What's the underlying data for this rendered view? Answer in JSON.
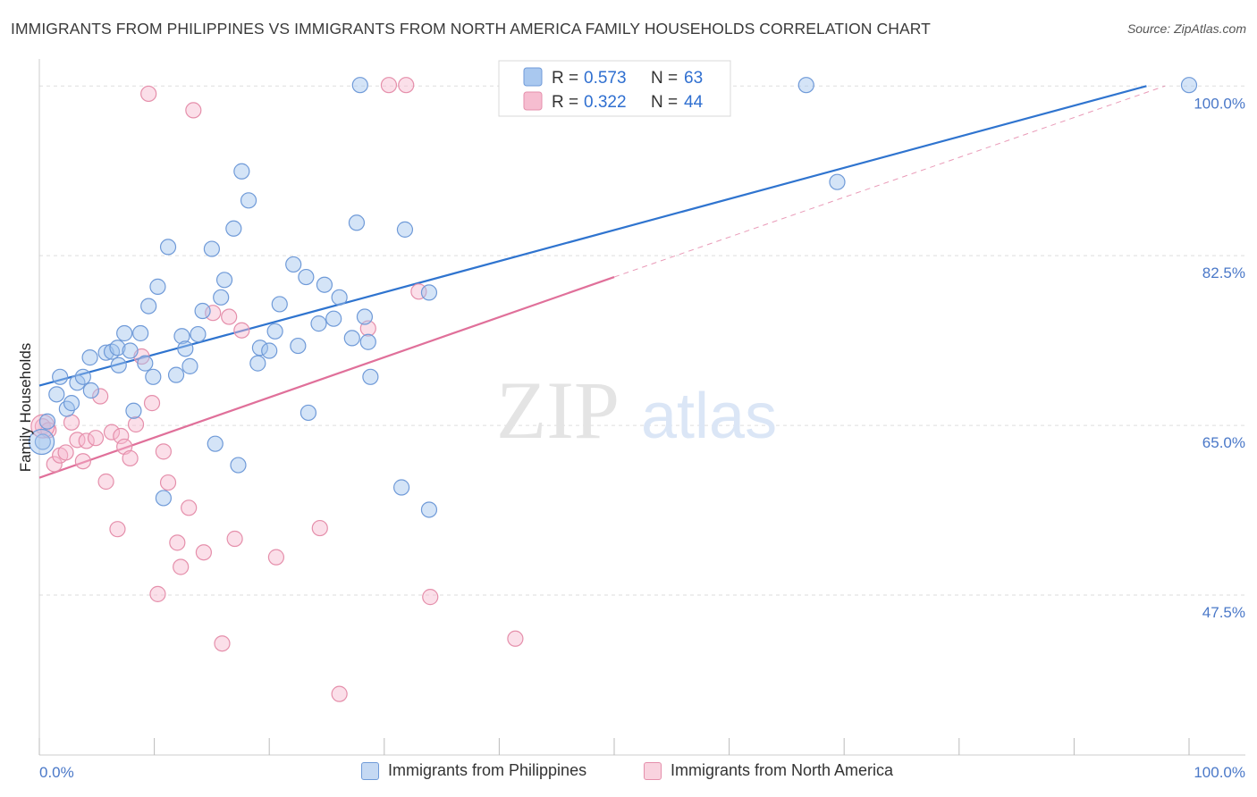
{
  "title": "IMMIGRANTS FROM PHILIPPINES VS IMMIGRANTS FROM NORTH AMERICA FAMILY HOUSEHOLDS CORRELATION CHART",
  "source": "Source: ZipAtlas.com",
  "watermark": {
    "zip": "ZIP",
    "atlas": "atlas"
  },
  "legend": {
    "r_label": "R = ",
    "n_label": "N = ",
    "rows": [
      {
        "r": "0.573",
        "n": "63",
        "color": "#a9c8ef",
        "stroke": "#6f9ad8"
      },
      {
        "r": "0.322",
        "n": "44",
        "color": "#f6bdd0",
        "stroke": "#e58fab"
      }
    ]
  },
  "bottom_legend": [
    {
      "label": "Immigrants from Philippines",
      "color": "#c5d9f3",
      "stroke": "#6f9ad8"
    },
    {
      "label": "Immigrants from North America",
      "color": "#f9d3df",
      "stroke": "#e58fab"
    }
  ],
  "colors": {
    "blue_line": "#2f74cf",
    "pink_line": "#e0709a",
    "blue_fill": "rgba(160,196,238,0.45)",
    "blue_stroke": "#6f9ad8",
    "pink_fill": "rgba(246,184,206,0.45)",
    "pink_stroke": "#e58fab",
    "grid": "#dddddd",
    "tick_label": "#4a78c8"
  },
  "chart_data": {
    "type": "scatter",
    "ylabel": "Family Households",
    "xlim": [
      0,
      100
    ],
    "ylim": [
      31.0,
      101.5
    ],
    "y_ticks": [
      {
        "value": 100.0,
        "label": "100.0%"
      },
      {
        "value": 82.5,
        "label": "82.5%"
      },
      {
        "value": 65.0,
        "label": "65.0%"
      },
      {
        "value": 47.5,
        "label": "47.5%"
      }
    ],
    "x_tick_labels": {
      "left": "0.0%",
      "right": "100.0%"
    },
    "grid": true,
    "series": [
      {
        "name": "Immigrants from Philippines",
        "color": "blue",
        "trend": {
          "x": [
            0,
            96.3
          ],
          "y": [
            69.1,
            100.0
          ]
        },
        "points": [
          {
            "x": 0.3,
            "y": 63.3
          },
          {
            "x": 0.7,
            "y": 65.4
          },
          {
            "x": 1.5,
            "y": 68.2
          },
          {
            "x": 1.8,
            "y": 70.0
          },
          {
            "x": 2.4,
            "y": 66.7
          },
          {
            "x": 2.8,
            "y": 67.3
          },
          {
            "x": 3.3,
            "y": 69.4
          },
          {
            "x": 3.8,
            "y": 70.0
          },
          {
            "x": 4.5,
            "y": 68.6
          },
          {
            "x": 4.4,
            "y": 72.0
          },
          {
            "x": 5.8,
            "y": 72.5
          },
          {
            "x": 6.3,
            "y": 72.6
          },
          {
            "x": 6.8,
            "y": 73.0
          },
          {
            "x": 6.9,
            "y": 71.2
          },
          {
            "x": 7.4,
            "y": 74.5
          },
          {
            "x": 7.9,
            "y": 72.7
          },
          {
            "x": 8.2,
            "y": 66.5
          },
          {
            "x": 8.8,
            "y": 74.5
          },
          {
            "x": 9.2,
            "y": 71.4
          },
          {
            "x": 9.5,
            "y": 77.3
          },
          {
            "x": 9.9,
            "y": 70.0
          },
          {
            "x": 10.3,
            "y": 79.3
          },
          {
            "x": 10.8,
            "y": 57.5
          },
          {
            "x": 11.2,
            "y": 83.4
          },
          {
            "x": 11.9,
            "y": 70.2
          },
          {
            "x": 12.4,
            "y": 74.2
          },
          {
            "x": 12.7,
            "y": 72.9
          },
          {
            "x": 13.1,
            "y": 71.1
          },
          {
            "x": 13.8,
            "y": 74.4
          },
          {
            "x": 14.2,
            "y": 76.8
          },
          {
            "x": 15.0,
            "y": 83.2
          },
          {
            "x": 15.3,
            "y": 63.1
          },
          {
            "x": 15.8,
            "y": 78.2
          },
          {
            "x": 16.1,
            "y": 80.0
          },
          {
            "x": 16.9,
            "y": 85.3
          },
          {
            "x": 17.3,
            "y": 60.9
          },
          {
            "x": 17.6,
            "y": 91.2
          },
          {
            "x": 18.2,
            "y": 88.2
          },
          {
            "x": 19.0,
            "y": 71.4
          },
          {
            "x": 19.2,
            "y": 73.0
          },
          {
            "x": 20.0,
            "y": 72.7
          },
          {
            "x": 20.5,
            "y": 74.7
          },
          {
            "x": 20.9,
            "y": 77.5
          },
          {
            "x": 22.1,
            "y": 81.6
          },
          {
            "x": 22.5,
            "y": 73.2
          },
          {
            "x": 23.2,
            "y": 80.3
          },
          {
            "x": 23.4,
            "y": 66.3
          },
          {
            "x": 24.3,
            "y": 75.5
          },
          {
            "x": 24.8,
            "y": 79.5
          },
          {
            "x": 25.6,
            "y": 76.0
          },
          {
            "x": 26.1,
            "y": 78.2
          },
          {
            "x": 27.2,
            "y": 74.0
          },
          {
            "x": 27.6,
            "y": 85.9
          },
          {
            "x": 27.9,
            "y": 100.1
          },
          {
            "x": 28.3,
            "y": 76.2
          },
          {
            "x": 28.6,
            "y": 73.6
          },
          {
            "x": 28.8,
            "y": 70.0
          },
          {
            "x": 31.5,
            "y": 58.6
          },
          {
            "x": 31.8,
            "y": 85.2
          },
          {
            "x": 33.9,
            "y": 56.3
          },
          {
            "x": 33.9,
            "y": 78.7
          },
          {
            "x": 66.7,
            "y": 100.1
          },
          {
            "x": 69.4,
            "y": 90.1
          },
          {
            "x": 100.0,
            "y": 100.1
          }
        ]
      },
      {
        "name": "Immigrants from North America",
        "color": "pink",
        "trend": {
          "x": [
            0,
            50.0
          ],
          "y": [
            59.6,
            80.3
          ]
        },
        "trend_extension": {
          "x": [
            50.0,
            97.9
          ],
          "y": [
            80.3,
            100.0
          ]
        },
        "points": [
          {
            "x": 0.3,
            "y": 64.9
          },
          {
            "x": 0.8,
            "y": 64.5
          },
          {
            "x": 1.3,
            "y": 61.0
          },
          {
            "x": 1.8,
            "y": 61.9
          },
          {
            "x": 2.3,
            "y": 62.2
          },
          {
            "x": 2.8,
            "y": 65.3
          },
          {
            "x": 3.3,
            "y": 63.5
          },
          {
            "x": 3.8,
            "y": 61.3
          },
          {
            "x": 4.1,
            "y": 63.4
          },
          {
            "x": 4.9,
            "y": 63.7
          },
          {
            "x": 5.3,
            "y": 68.0
          },
          {
            "x": 5.8,
            "y": 59.2
          },
          {
            "x": 6.3,
            "y": 64.3
          },
          {
            "x": 6.8,
            "y": 54.3
          },
          {
            "x": 7.1,
            "y": 63.9
          },
          {
            "x": 7.4,
            "y": 62.8
          },
          {
            "x": 7.9,
            "y": 61.6
          },
          {
            "x": 8.4,
            "y": 65.1
          },
          {
            "x": 8.9,
            "y": 72.1
          },
          {
            "x": 9.5,
            "y": 99.2
          },
          {
            "x": 9.8,
            "y": 67.3
          },
          {
            "x": 10.3,
            "y": 47.6
          },
          {
            "x": 10.8,
            "y": 62.3
          },
          {
            "x": 11.2,
            "y": 59.1
          },
          {
            "x": 12.0,
            "y": 52.9
          },
          {
            "x": 12.3,
            "y": 50.4
          },
          {
            "x": 13.0,
            "y": 56.5
          },
          {
            "x": 13.4,
            "y": 97.5
          },
          {
            "x": 14.3,
            "y": 51.9
          },
          {
            "x": 15.1,
            "y": 76.6
          },
          {
            "x": 15.9,
            "y": 42.5
          },
          {
            "x": 16.5,
            "y": 76.2
          },
          {
            "x": 17.0,
            "y": 53.3
          },
          {
            "x": 17.6,
            "y": 74.8
          },
          {
            "x": 20.6,
            "y": 51.4
          },
          {
            "x": 24.4,
            "y": 54.4
          },
          {
            "x": 26.1,
            "y": 37.3
          },
          {
            "x": 28.6,
            "y": 75.0
          },
          {
            "x": 30.4,
            "y": 100.1
          },
          {
            "x": 31.9,
            "y": 100.1
          },
          {
            "x": 33.0,
            "y": 78.8
          },
          {
            "x": 34.0,
            "y": 47.3
          },
          {
            "x": 41.4,
            "y": 43.0
          },
          {
            "x": 47.6,
            "y": 100.1
          }
        ]
      }
    ]
  }
}
